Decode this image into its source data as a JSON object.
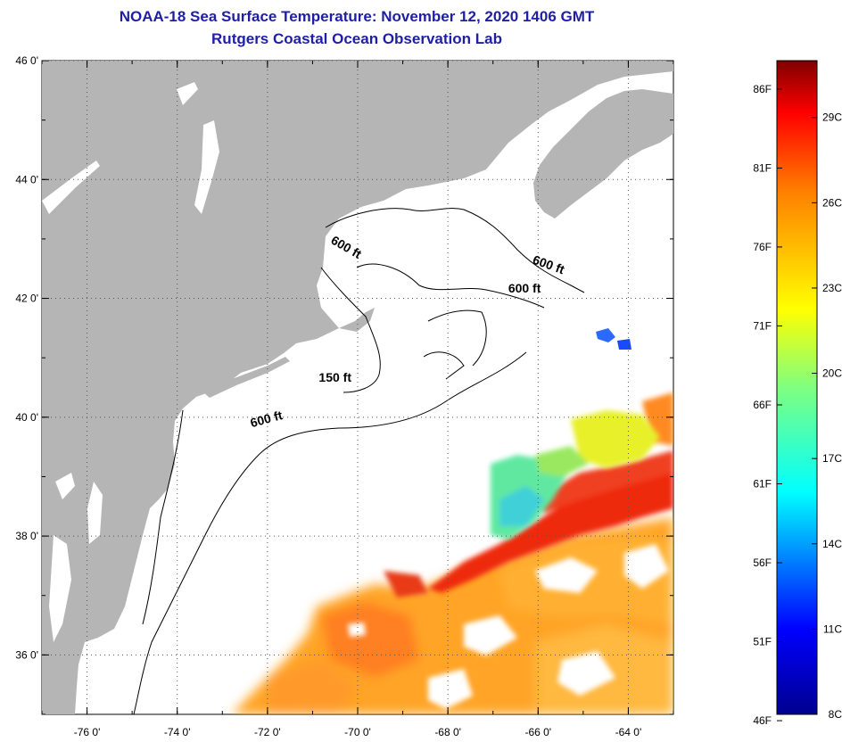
{
  "title": {
    "line1": "NOAA-18 Sea Surface Temperature:  November 12, 2020 1406 GMT",
    "line2": "Rutgers Coastal Ocean Observation Lab"
  },
  "colors": {
    "land": "#b5b5b5",
    "ocean": "#ffffff",
    "title": "#1f1fa6"
  },
  "map": {
    "lat_ticks": [
      {
        "value": 46,
        "label": "46 0'"
      },
      {
        "value": 44,
        "label": "44 0'"
      },
      {
        "value": 42,
        "label": "42 0'"
      },
      {
        "value": 40,
        "label": "40 0'"
      },
      {
        "value": 38,
        "label": "38 0'"
      },
      {
        "value": 36,
        "label": "36 0'"
      }
    ],
    "lon_ticks": [
      {
        "value": -76,
        "label": "-76 0'"
      },
      {
        "value": -74,
        "label": "-74 0'"
      },
      {
        "value": -72,
        "label": "-72 0'"
      },
      {
        "value": -70,
        "label": "-70 0'"
      },
      {
        "value": -68,
        "label": "-68 0'"
      },
      {
        "value": -66,
        "label": "-66 0'"
      },
      {
        "value": -64,
        "label": "-64 0'"
      }
    ],
    "lat_range": [
      35,
      46
    ],
    "lon_range": [
      -77,
      -63
    ],
    "contour_labels": [
      {
        "text": "600 ft",
        "lon": -70.3,
        "lat": 42.8
      },
      {
        "text": "600 ft",
        "lon": -65.8,
        "lat": 42.5
      },
      {
        "text": "600 ft",
        "lon": -66.3,
        "lat": 42.1
      },
      {
        "text": "150 ft",
        "lon": -70.5,
        "lat": 40.6
      },
      {
        "text": "600 ft",
        "lon": -72.0,
        "lat": 39.9
      }
    ]
  },
  "colorbar": {
    "label_pairs": [
      {
        "f": "86F",
        "c": "29C"
      },
      {
        "f": "81F",
        "c": "26C"
      },
      {
        "f": "76F",
        "c": "23C"
      },
      {
        "f": "71F",
        "c": "20C"
      },
      {
        "f": "66F",
        "c": "17C"
      },
      {
        "f": "61F",
        "c": "14C"
      },
      {
        "f": "56F",
        "c": "11C"
      },
      {
        "f": "51F",
        "c": "8C"
      },
      {
        "f": "46F",
        "c": ""
      }
    ],
    "fahrenheit_labels": [
      "86F",
      "81F",
      "76F",
      "71F",
      "66F",
      "61F",
      "56F",
      "51F",
      "46F"
    ],
    "celsius_labels": [
      "29C",
      "26C",
      "23C",
      "20C",
      "17C",
      "14C",
      "11C",
      "8C"
    ],
    "range_c": [
      8,
      31
    ]
  }
}
